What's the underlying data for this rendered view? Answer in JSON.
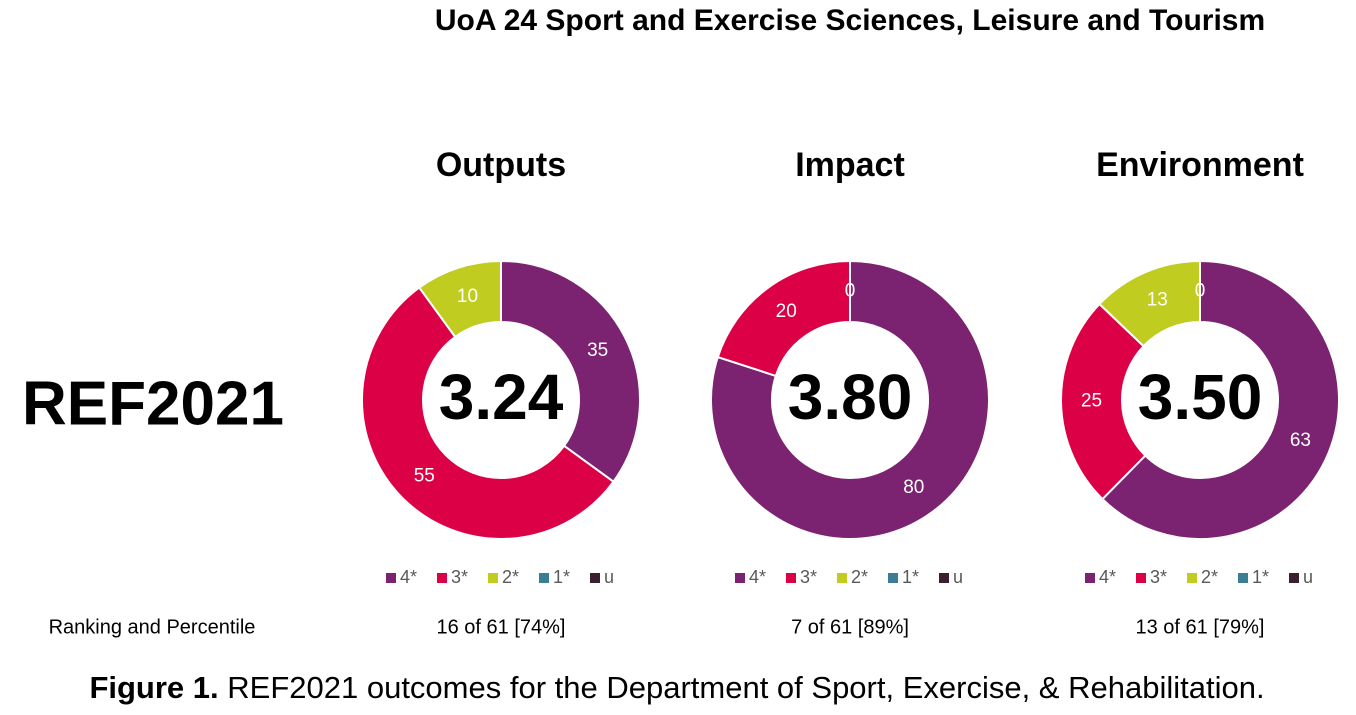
{
  "title": "UoA 24 Sport and Exercise Sciences, Leisure and Tourism",
  "side_label": "REF2021",
  "row_label": "Ranking and Percentile",
  "caption": {
    "label": "Figure 1.",
    "text": "REF2021 outcomes for the Department of Sport, Exercise, & Rehabilitation."
  },
  "chart_data": [
    {
      "type": "donut",
      "title": "Outputs",
      "center_label": "3.24",
      "ranking": "16 of 61 [74%]",
      "categories": [
        "4*",
        "3*",
        "2*",
        "1*",
        "u"
      ],
      "colors": [
        "#7b2270",
        "#dc0046",
        "#c0cc20",
        "#3a7d95",
        "#3d2030"
      ],
      "values": [
        35,
        55,
        10,
        null,
        null
      ]
    },
    {
      "type": "donut",
      "title": "Impact",
      "center_label": "3.80",
      "ranking": "7 of 61 [89%]",
      "categories": [
        "4*",
        "3*",
        "2*",
        "1*",
        "u"
      ],
      "colors": [
        "#7b2270",
        "#dc0046",
        "#c0cc20",
        "#3a7d95",
        "#3d2030"
      ],
      "values": [
        80,
        20,
        0,
        null,
        null
      ]
    },
    {
      "type": "donut",
      "title": "Environment",
      "center_label": "3.50",
      "ranking": "13 of 61 [79%]",
      "categories": [
        "4*",
        "3*",
        "2*",
        "1*",
        "u"
      ],
      "colors": [
        "#7b2270",
        "#dc0046",
        "#c0cc20",
        "#3a7d95",
        "#3d2030"
      ],
      "values": [
        63,
        25,
        13,
        0,
        null
      ]
    }
  ]
}
